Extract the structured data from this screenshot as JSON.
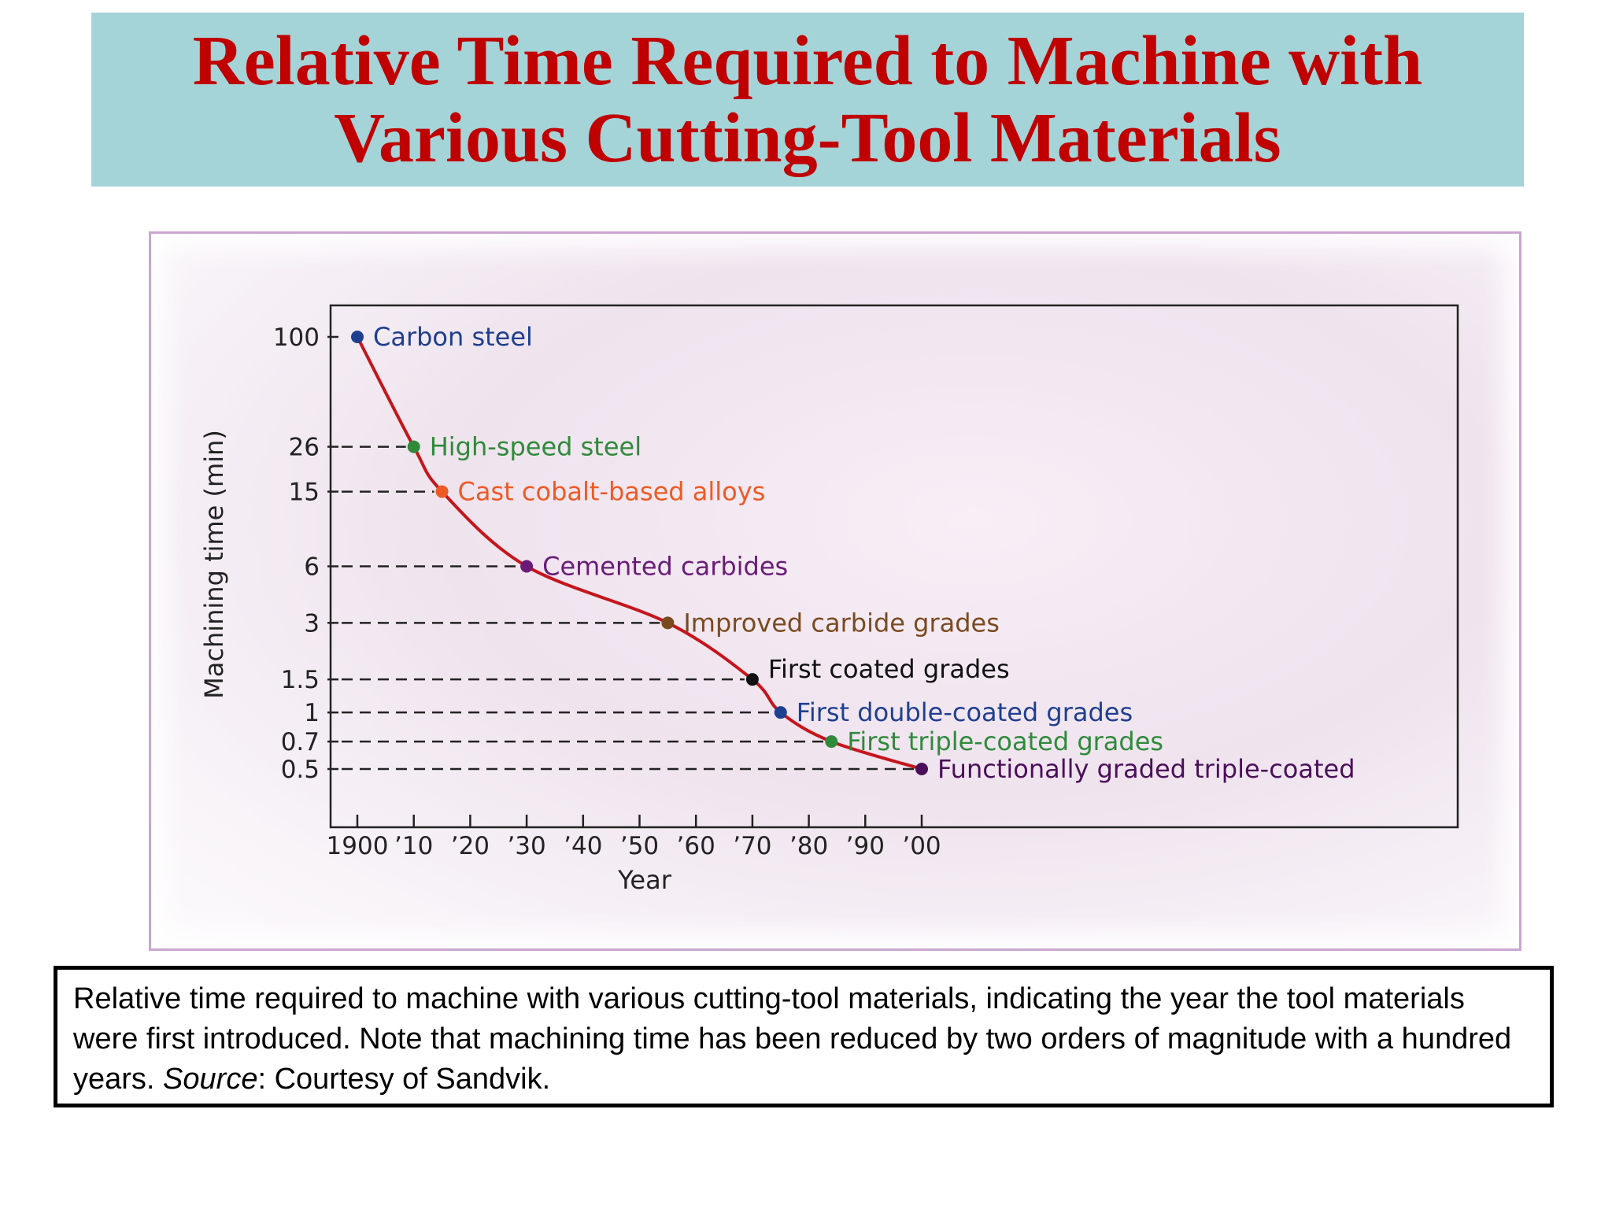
{
  "slide": {
    "title_line1": "Relative Time Required to Machine with",
    "title_line2": "Various Cutting-Tool Materials"
  },
  "caption": {
    "text": "Relative time required to machine with various cutting-tool materials, indicating the year the tool materials were first introduced.  Note that machining time has been reduced by two orders of magnitude with a hundred years.  ",
    "source_label": "Source",
    "source_text": ":  Courtesy of Sandvik."
  },
  "chart_data": {
    "type": "line",
    "xlabel": "Year",
    "ylabel": "Machining time (min)",
    "y_scale": "log",
    "ylim": [
      0.4,
      150
    ],
    "xlim": [
      1895,
      2095
    ],
    "x_ticks": [
      1900,
      1910,
      1920,
      1930,
      1940,
      1950,
      1960,
      1970,
      1980,
      1990,
      2000
    ],
    "x_tick_labels": [
      "1900",
      "’10",
      "’20",
      "’30",
      "’40",
      "’50",
      "’60",
      "’70",
      "’80",
      "’90",
      "’00"
    ],
    "y_ticks": [
      100,
      26,
      15,
      6,
      3,
      1.5,
      1,
      0.7,
      0.5
    ],
    "y_tick_labels": [
      "100",
      "26",
      "15",
      "6",
      "3",
      "1.5",
      "1",
      "0.7",
      "0.5"
    ],
    "line_color": "#c4161c",
    "grid": false,
    "guide_lines": "dashed from y-axis to each point",
    "points": [
      {
        "year": 1900,
        "time": 100,
        "label": "Carbon steel",
        "color": "#1f3f8f"
      },
      {
        "year": 1910,
        "time": 26,
        "label": "High-speed steel",
        "color": "#2f8a3a"
      },
      {
        "year": 1915,
        "time": 15,
        "label": "Cast cobalt-based alloys",
        "color": "#ee5a24"
      },
      {
        "year": 1930,
        "time": 6,
        "label": "Cemented carbides",
        "color": "#6a1b78"
      },
      {
        "year": 1955,
        "time": 3,
        "label": "Improved carbide grades",
        "color": "#7a4a1f"
      },
      {
        "year": 1970,
        "time": 1.5,
        "label": "First coated grades",
        "color": "#111111"
      },
      {
        "year": 1975,
        "time": 1,
        "label": "First double-coated grades",
        "color": "#1f3f8f"
      },
      {
        "year": 1984,
        "time": 0.7,
        "label": "First triple-coated grades",
        "color": "#2f8a3a"
      },
      {
        "year": 2000,
        "time": 0.5,
        "label": "Functionally graded triple-coated",
        "color": "#4b0f5a"
      }
    ]
  }
}
